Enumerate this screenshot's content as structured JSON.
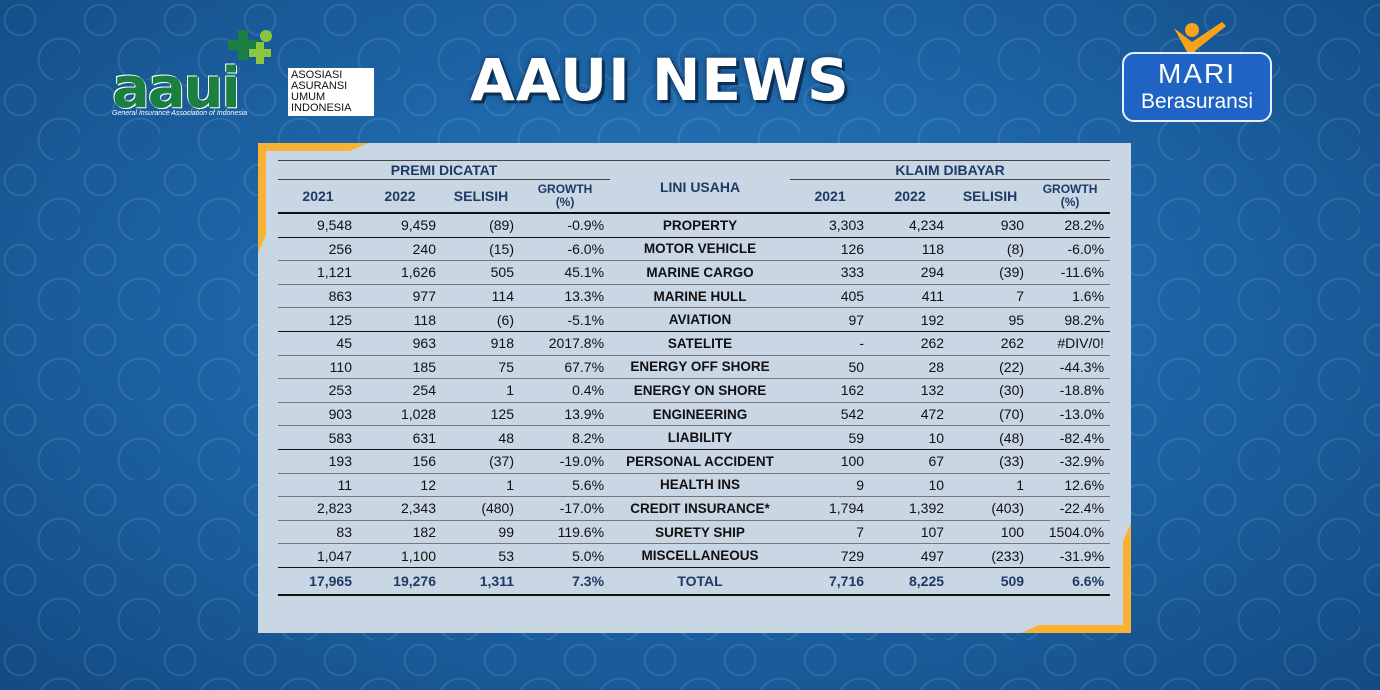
{
  "header": {
    "title": "AAUI NEWS",
    "aaui_logo": {
      "word": "aaui",
      "org_lines": [
        "ASOSIASI",
        "ASURANSI",
        "UMUM",
        "INDONESIA"
      ],
      "subtitle": "General Insurance Association of Indonesia"
    },
    "mari_logo": {
      "line1": "MARI",
      "line2": "Berasuransi"
    }
  },
  "colors": {
    "background": "#1e66a8",
    "panel": "#c9d6e3",
    "accent_corner": "#f9b233",
    "header_text": "#1f3a66",
    "logo_green": "#1b7f3f"
  },
  "table": {
    "group_premi": "PREMI DICATAT",
    "group_lini": "LINI USAHA",
    "group_klaim": "KLAIM DIBAYAR",
    "cols_premi": [
      "2021",
      "2022",
      "SELISIH"
    ],
    "growth_label": [
      "GROWTH",
      "(%)"
    ],
    "cols_klaim": [
      "2021",
      "2022",
      "SELISIH"
    ],
    "rows": [
      {
        "p21": "9,548",
        "p22": "9,459",
        "ps": "(89)",
        "pg": "-0.9%",
        "lini": "PROPERTY",
        "k21": "3,303",
        "k22": "4,234",
        "ks": "930",
        "kg": "28.2%"
      },
      {
        "p21": "256",
        "p22": "240",
        "ps": "(15)",
        "pg": "-6.0%",
        "lini": "MOTOR VEHICLE",
        "k21": "126",
        "k22": "118",
        "ks": "(8)",
        "kg": "-6.0%"
      },
      {
        "p21": "1,121",
        "p22": "1,626",
        "ps": "505",
        "pg": "45.1%",
        "lini": "MARINE CARGO",
        "k21": "333",
        "k22": "294",
        "ks": "(39)",
        "kg": "-11.6%"
      },
      {
        "p21": "863",
        "p22": "977",
        "ps": "114",
        "pg": "13.3%",
        "lini": "MARINE HULL",
        "k21": "405",
        "k22": "411",
        "ks": "7",
        "kg": "1.6%"
      },
      {
        "p21": "125",
        "p22": "118",
        "ps": "(6)",
        "pg": "-5.1%",
        "lini": "AVIATION",
        "k21": "97",
        "k22": "192",
        "ks": "95",
        "kg": "98.2%"
      },
      {
        "p21": "45",
        "p22": "963",
        "ps": "918",
        "pg": "2017.8%",
        "lini": "SATELITE",
        "k21": "-",
        "k22": "262",
        "ks": "262",
        "kg": "#DIV/0!"
      },
      {
        "p21": "110",
        "p22": "185",
        "ps": "75",
        "pg": "67.7%",
        "lini": "ENERGY OFF SHORE",
        "k21": "50",
        "k22": "28",
        "ks": "(22)",
        "kg": "-44.3%"
      },
      {
        "p21": "253",
        "p22": "254",
        "ps": "1",
        "pg": "0.4%",
        "lini": "ENERGY ON SHORE",
        "k21": "162",
        "k22": "132",
        "ks": "(30)",
        "kg": "-18.8%"
      },
      {
        "p21": "903",
        "p22": "1,028",
        "ps": "125",
        "pg": "13.9%",
        "lini": "ENGINEERING",
        "k21": "542",
        "k22": "472",
        "ks": "(70)",
        "kg": "-13.0%"
      },
      {
        "p21": "583",
        "p22": "631",
        "ps": "48",
        "pg": "8.2%",
        "lini": "LIABILITY",
        "k21": "59",
        "k22": "10",
        "ks": "(48)",
        "kg": "-82.4%"
      },
      {
        "p21": "193",
        "p22": "156",
        "ps": "(37)",
        "pg": "-19.0%",
        "lini": "PERSONAL ACCIDENT",
        "k21": "100",
        "k22": "67",
        "ks": "(33)",
        "kg": "-32.9%"
      },
      {
        "p21": "11",
        "p22": "12",
        "ps": "1",
        "pg": "5.6%",
        "lini": "HEALTH INS",
        "k21": "9",
        "k22": "10",
        "ks": "1",
        "kg": "12.6%"
      },
      {
        "p21": "2,823",
        "p22": "2,343",
        "ps": "(480)",
        "pg": "-17.0%",
        "lini": "CREDIT INSURANCE*",
        "k21": "1,794",
        "k22": "1,392",
        "ks": "(403)",
        "kg": "-22.4%"
      },
      {
        "p21": "83",
        "p22": "182",
        "ps": "99",
        "pg": "119.6%",
        "lini": "SURETY SHIP",
        "k21": "7",
        "k22": "107",
        "ks": "100",
        "kg": "1504.0%"
      },
      {
        "p21": "1,047",
        "p22": "1,100",
        "ps": "53",
        "pg": "5.0%",
        "lini": "MISCELLANEOUS",
        "k21": "729",
        "k22": "497",
        "ks": "(233)",
        "kg": "-31.9%"
      }
    ],
    "total": {
      "p21": "17,965",
      "p22": "19,276",
      "ps": "1,311",
      "pg": "7.3%",
      "lini": "TOTAL",
      "k21": "7,716",
      "k22": "8,225",
      "ks": "509",
      "kg": "6.6%"
    }
  }
}
